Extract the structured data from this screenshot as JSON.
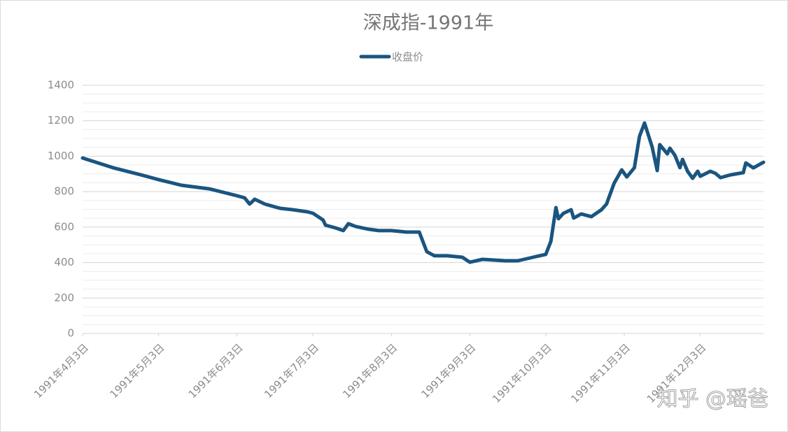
{
  "chart_data": {
    "type": "line",
    "title": "深成指-1991年",
    "watermark": "知乎 @瑶爸",
    "x": [
      "1991-04-03",
      "1991-04-15",
      "1991-04-26",
      "1991-05-03",
      "1991-05-12",
      "1991-05-23",
      "1991-06-03",
      "1991-06-06",
      "1991-06-08",
      "1991-06-10",
      "1991-06-14",
      "1991-06-20",
      "1991-06-25",
      "1991-07-01",
      "1991-07-03",
      "1991-07-07",
      "1991-07-08",
      "1991-07-12",
      "1991-07-15",
      "1991-07-17",
      "1991-07-20",
      "1991-07-25",
      "1991-07-29",
      "1991-08-03",
      "1991-08-09",
      "1991-08-14",
      "1991-08-17",
      "1991-08-20",
      "1991-08-25",
      "1991-08-31",
      "1991-09-03",
      "1991-09-08",
      "1991-09-17",
      "1991-09-22",
      "1991-09-28",
      "1991-10-03",
      "1991-10-05",
      "1991-10-07",
      "1991-10-08",
      "1991-10-10",
      "1991-10-13",
      "1991-10-14",
      "1991-10-17",
      "1991-10-21",
      "1991-10-25",
      "1991-10-27",
      "1991-10-30",
      "1991-11-02",
      "1991-11-04",
      "1991-11-07",
      "1991-11-09",
      "1991-11-11",
      "1991-11-14",
      "1991-11-16",
      "1991-11-17",
      "1991-11-20",
      "1991-11-21",
      "1991-11-23",
      "1991-11-25",
      "1991-11-26",
      "1991-11-28",
      "1991-11-30",
      "1991-12-02",
      "1991-12-03",
      "1991-12-07",
      "1991-12-09",
      "1991-12-11",
      "1991-12-15",
      "1991-12-20",
      "1991-12-21",
      "1991-12-24",
      "1991-12-28"
    ],
    "series": [
      {
        "name": "收盘价",
        "color": "#1a5580",
        "values": [
          990,
          935,
          895,
          868,
          836,
          816,
          777,
          765,
          730,
          757,
          730,
          706,
          698,
          686,
          678,
          640,
          611,
          595,
          580,
          619,
          603,
          588,
          580,
          580,
          572,
          572,
          461,
          438,
          438,
          430,
          402,
          418,
          410,
          410,
          430,
          446,
          520,
          710,
          647,
          678,
          698,
          651,
          674,
          659,
          698,
          730,
          848,
          923,
          883,
          935,
          1112,
          1187,
          1053,
          919,
          1065,
          1013,
          1045,
          1005,
          935,
          982,
          915,
          875,
          915,
          887,
          915,
          903,
          879,
          895,
          907,
          962,
          934,
          966
        ]
      }
    ],
    "xlim": [
      "1991-04-03",
      "1991-12-28"
    ],
    "xticks": [
      {
        "value": "1991-04-03",
        "label": "1991年4月3日"
      },
      {
        "value": "1991-05-03",
        "label": "1991年5月3日"
      },
      {
        "value": "1991-06-03",
        "label": "1991年6月3日"
      },
      {
        "value": "1991-07-03",
        "label": "1991年7月3日"
      },
      {
        "value": "1991-08-03",
        "label": "1991年8月3日"
      },
      {
        "value": "1991-09-03",
        "label": "1991年9月3日"
      },
      {
        "value": "1991-10-03",
        "label": "1991年10月3日"
      },
      {
        "value": "1991-11-03",
        "label": "1991年11月3日"
      },
      {
        "value": "1991-12-03",
        "label": "1991年12月3日"
      }
    ],
    "ylim": [
      0,
      1400
    ],
    "yticks": [
      0,
      200,
      400,
      600,
      800,
      1000,
      1200,
      1400
    ],
    "yminorticks": [
      50,
      100,
      150,
      250,
      300,
      350,
      450,
      500,
      550,
      650,
      700,
      750,
      850,
      900,
      950,
      1050,
      1100,
      1150,
      1250,
      1300,
      1350
    ],
    "grid": true,
    "legend": "top"
  }
}
